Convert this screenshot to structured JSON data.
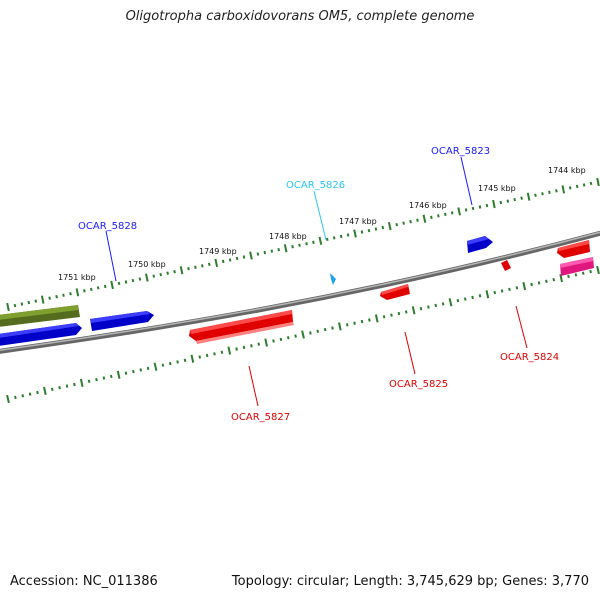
{
  "title": "Oligotropha carboxidovorans OM5, complete genome",
  "footer": {
    "accession": "Accession: NC_011386",
    "summary": "Topology: circular; Length: 3,745,629 bp; Genes: 3,770"
  },
  "colors": {
    "backbone": "#7a7a7a",
    "tick": "#2e7d2e",
    "cds_forward": "#0000ee",
    "cds_reverse": "#ee0000",
    "gene_olive": "#6b8e23",
    "gene_cyan": "#29b6f6",
    "gene_magenta": "#e91e8c",
    "label_blue": "#1a1aff",
    "label_cyan": "#29c5f6",
    "label_red": "#e00000"
  },
  "scale_labels": [
    "1744 kbp",
    "1745 kbp",
    "1746 kbp",
    "1747 kbp",
    "1748 kbp",
    "1749 kbp",
    "1750 kbp",
    "1751 kbp"
  ],
  "gene_labels": [
    "OCAR_5823",
    "OCAR_5826",
    "OCAR_5828",
    "OCAR_5824",
    "OCAR_5825",
    "OCAR_5827"
  ]
}
